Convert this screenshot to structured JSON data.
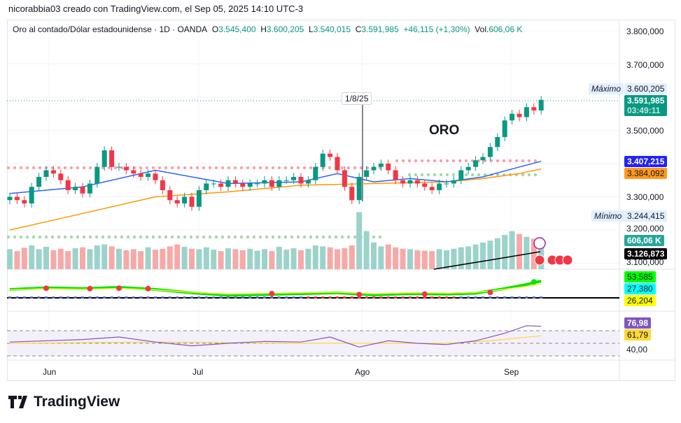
{
  "credit": "nicorabbia03 creado con TradingView.com, el Sep 05, 2025 14:10 UTC-3",
  "legend": {
    "symbol": "Oro al contado/Dólar estadounidense · 1D · OANDA",
    "o_label": "O",
    "o": "3.545,400",
    "h_label": "H",
    "h": "3.600,205",
    "l_label": "L",
    "l": "3.540,015",
    "c_label": "C",
    "c": "3.591,985",
    "change": "+46,115 (+1,30%)",
    "vol_label": "Vol.",
    "vol": "606,06 K"
  },
  "annotation": {
    "date": "1/8/25",
    "text": "ORO"
  },
  "price_axis": {
    "ticks": [
      "3.800,000",
      "3.700,000",
      "3.600,000",
      "3.500,000",
      "3.400,000",
      "3.300,000",
      "3.200,000",
      "3.100,000"
    ],
    "max_label": "Máximo",
    "max_value": "3.600,205",
    "min_label": "Mínimo",
    "min_value": "3.244,415",
    "last_price": "3.591,985",
    "countdown": "03:49:11",
    "ma_fast": "3.407,215",
    "ma_slow": "3.384,092",
    "volume": "606,06 K",
    "vol_ma": "3.126,873"
  },
  "ind_axis": {
    "v1": "53,585",
    "v2": "27,380",
    "v3": "26,204"
  },
  "rsi_axis": {
    "rsi": "76,98",
    "rsi_ma": "61,79",
    "level": "40,00"
  },
  "x_labels": [
    "Jun",
    "Jul",
    "Ago",
    "Sep"
  ],
  "logo": "TradingView",
  "colors": {
    "up": "#089981",
    "down": "#f23645",
    "ma_fast": "#2962ff",
    "ma_slow": "#ff9800"
  },
  "chart_data": {
    "type": "candlestick",
    "title": "Oro al contado/Dólar estadounidense · 1D · OANDA",
    "ylim": [
      3080000,
      3820000
    ],
    "close": [
      3300,
      3290,
      3280,
      3330,
      3360,
      3380,
      3370,
      3350,
      3320,
      3330,
      3310,
      3340,
      3390,
      3440,
      3390,
      3390,
      3380,
      3370,
      3360,
      3370,
      3350,
      3320,
      3290,
      3280,
      3300,
      3270,
      3320,
      3340,
      3340,
      3330,
      3350,
      3340,
      3330,
      3340,
      3340,
      3350,
      3330,
      3350,
      3350,
      3360,
      3340,
      3350,
      3390,
      3430,
      3420,
      3380,
      3330,
      3290,
      3360,
      3380,
      3390,
      3400,
      3380,
      3350,
      3340,
      3350,
      3340,
      3330,
      3320,
      3340,
      3340,
      3350,
      3380,
      3390,
      3410,
      3420,
      3450,
      3480,
      3530,
      3550,
      3540,
      3570,
      3560,
      3592
    ],
    "volume": [
      420,
      380,
      450,
      500,
      420,
      470,
      400,
      430,
      380,
      440,
      460,
      420,
      500,
      520,
      480,
      430,
      400,
      420,
      380,
      460,
      410,
      430,
      480,
      520,
      470,
      430,
      420,
      460,
      410,
      380,
      440,
      420,
      400,
      430,
      390,
      420,
      380,
      470,
      410,
      440,
      400,
      430,
      500,
      480,
      460,
      420,
      440,
      500,
      1200,
      800,
      560,
      480,
      520,
      460,
      430,
      420,
      400,
      390,
      380,
      420,
      400,
      430,
      460,
      480,
      520,
      560,
      600,
      650,
      720,
      800,
      740,
      680,
      640,
      606
    ],
    "ma_fast": [
      [
        0,
        3310
      ],
      [
        10,
        3330
      ],
      [
        20,
        3380
      ],
      [
        30,
        3340
      ],
      [
        40,
        3345
      ],
      [
        45,
        3370
      ],
      [
        50,
        3345
      ],
      [
        55,
        3355
      ],
      [
        60,
        3345
      ],
      [
        65,
        3360
      ],
      [
        70,
        3390
      ],
      [
        73,
        3407
      ]
    ],
    "ma_slow": [
      [
        0,
        3200
      ],
      [
        10,
        3250
      ],
      [
        20,
        3300
      ],
      [
        30,
        3315
      ],
      [
        40,
        3335
      ],
      [
        50,
        3340
      ],
      [
        60,
        3345
      ],
      [
        65,
        3355
      ],
      [
        70,
        3370
      ],
      [
        73,
        3384
      ]
    ],
    "rsi": [
      [
        0,
        52
      ],
      [
        10,
        56
      ],
      [
        15,
        60
      ],
      [
        20,
        52
      ],
      [
        25,
        46
      ],
      [
        30,
        50
      ],
      [
        35,
        53
      ],
      [
        40,
        52
      ],
      [
        44,
        60
      ],
      [
        48,
        44
      ],
      [
        52,
        54
      ],
      [
        56,
        50
      ],
      [
        60,
        48
      ],
      [
        64,
        54
      ],
      [
        68,
        66
      ],
      [
        71,
        78
      ],
      [
        73,
        77
      ]
    ],
    "rsi_ma": [
      [
        0,
        50
      ],
      [
        20,
        52
      ],
      [
        40,
        50
      ],
      [
        50,
        50
      ],
      [
        60,
        50
      ],
      [
        66,
        54
      ],
      [
        73,
        62
      ]
    ],
    "osc": [
      [
        0,
        10
      ],
      [
        5,
        14
      ],
      [
        10,
        12
      ],
      [
        15,
        15
      ],
      [
        20,
        10
      ],
      [
        25,
        2
      ],
      [
        30,
        -4
      ],
      [
        35,
        -2
      ],
      [
        40,
        0
      ],
      [
        45,
        2
      ],
      [
        50,
        -3
      ],
      [
        55,
        0
      ],
      [
        60,
        -1
      ],
      [
        64,
        1
      ],
      [
        68,
        12
      ],
      [
        71,
        22
      ],
      [
        73,
        30
      ]
    ]
  }
}
